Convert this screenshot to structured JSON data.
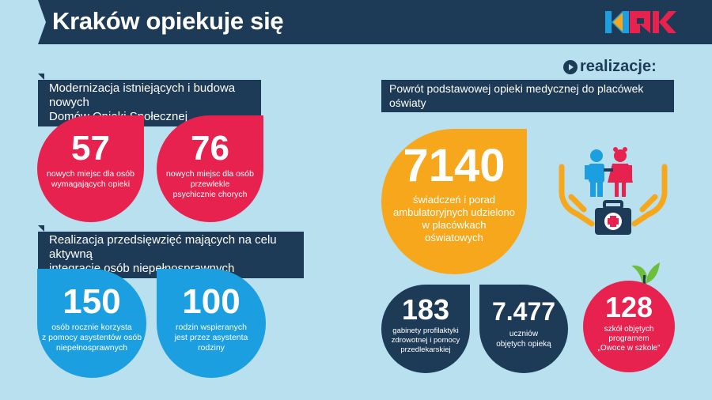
{
  "header": {
    "title": "Kraków opiekuje się"
  },
  "logo": {
    "text": "KRK",
    "colors": [
      "#1b9fe0",
      "#e8224f",
      "#f6a71c"
    ]
  },
  "realizacje": {
    "label": "realizacje:"
  },
  "left": {
    "section1": {
      "label_lines": [
        "Modernizacja istniejących i budowa nowych",
        "Domów Opieki Społecznej"
      ],
      "stats": [
        {
          "value": "57",
          "desc_lines": [
            "nowych miejsc dla osób",
            "wymagających opieki"
          ]
        },
        {
          "value": "76",
          "desc_lines": [
            "nowych miejsc dla osób",
            "przewlekle",
            "psychicznie chorych"
          ]
        }
      ]
    },
    "section2": {
      "label_lines": [
        "Realizacja przedsięwzięć mających na celu aktywną",
        "integrację osób niepełnosprawnych"
      ],
      "stats": [
        {
          "value": "150",
          "desc_lines": [
            "osób rocznie korzysta",
            "z pomocy asystentów osób",
            "niepełnosprawnych"
          ]
        },
        {
          "value": "100",
          "desc_lines": [
            "rodzin wspieranych",
            "jest przez asystenta",
            "rodziny"
          ]
        }
      ]
    }
  },
  "right": {
    "section_label": "Powrót podstawowej opieki medycznej do placówek oświaty",
    "main_stat": {
      "value": "7140",
      "desc_lines": [
        "świadczeń i porad",
        "ambulatoryjnych udzielono",
        "w placówkach",
        "oświatowych"
      ]
    },
    "stats": [
      {
        "value": "183",
        "desc_lines": [
          "gabinety profilaktyki",
          "zdrowotnej i pomocy",
          "przedlekarskiej"
        ]
      },
      {
        "value": "7.477",
        "desc_lines": [
          "uczniów",
          "objętych opieką"
        ]
      },
      {
        "value": "128",
        "desc_lines": [
          "szkół objętych",
          "programem",
          "„Owoce w szkole”"
        ]
      }
    ]
  },
  "colors": {
    "navy": "#1d3a57",
    "red": "#e8224f",
    "blue": "#1b9fe0",
    "orange": "#f6a71c",
    "background": "#b9e0ee",
    "green": "#6bbf3a"
  },
  "icons": [
    "play-circle-icon",
    "children-icon",
    "caring-hands-icon",
    "first-aid-kit-icon",
    "apple-leaf-icon"
  ]
}
